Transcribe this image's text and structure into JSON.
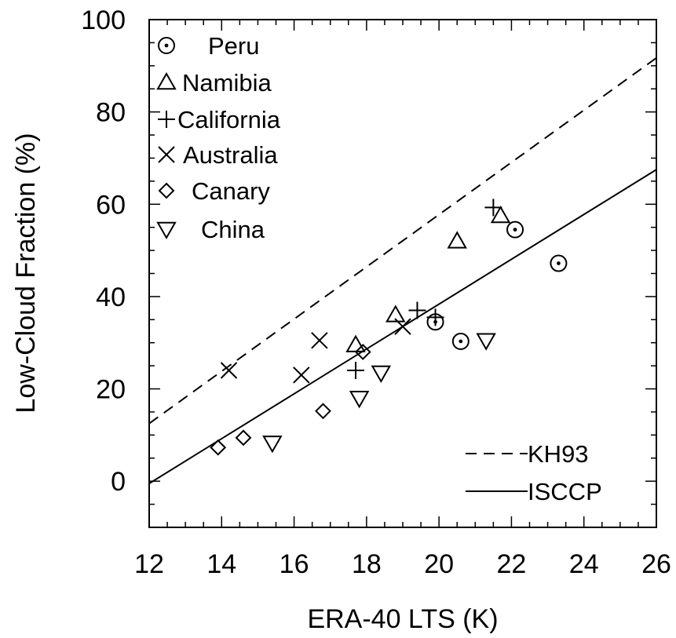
{
  "chart_data": {
    "type": "scatter",
    "title": "",
    "xlabel": "ERA-40 LTS (K)",
    "ylabel": "Low-Cloud Fraction (%)",
    "xlim": [
      12,
      26
    ],
    "ylim": [
      -10,
      100
    ],
    "xticks": [
      12,
      14,
      16,
      18,
      20,
      22,
      24,
      26
    ],
    "yticks": [
      0,
      20,
      40,
      60,
      80,
      100
    ],
    "x_tick_labels": [
      "12",
      "14",
      "16",
      "18",
      "20",
      "22",
      "24",
      "26"
    ],
    "y_tick_labels": [
      "0",
      "20",
      "40",
      "60",
      "80",
      "100"
    ],
    "grid": false,
    "legend_position": "top-left",
    "series": [
      {
        "name": "Peru",
        "marker": "dotted-circle",
        "points": [
          [
            19.9,
            34.5
          ],
          [
            20.6,
            30.3
          ],
          [
            22.1,
            54.5
          ],
          [
            23.3,
            47.2
          ]
        ]
      },
      {
        "name": "Namibia",
        "marker": "triangle-up",
        "points": [
          [
            17.7,
            29.5
          ],
          [
            18.8,
            36.0
          ],
          [
            20.5,
            52.0
          ],
          [
            21.7,
            57.5
          ]
        ]
      },
      {
        "name": "California",
        "marker": "plus",
        "points": [
          [
            17.7,
            24.0
          ],
          [
            19.4,
            37.0
          ],
          [
            19.9,
            35.5
          ],
          [
            21.5,
            59.3
          ]
        ]
      },
      {
        "name": "Australia",
        "marker": "cross",
        "points": [
          [
            14.2,
            24.0
          ],
          [
            16.2,
            23.0
          ],
          [
            16.7,
            30.5
          ],
          [
            19.0,
            33.5
          ]
        ]
      },
      {
        "name": "Canary",
        "marker": "diamond",
        "points": [
          [
            13.9,
            7.3
          ],
          [
            14.6,
            9.4
          ],
          [
            16.8,
            15.2
          ],
          [
            17.9,
            28.0
          ]
        ]
      },
      {
        "name": "China",
        "marker": "triangle-down",
        "points": [
          [
            15.4,
            8.3
          ],
          [
            17.8,
            18.0
          ],
          [
            18.4,
            23.5
          ],
          [
            21.3,
            30.5
          ]
        ]
      }
    ],
    "lines": [
      {
        "name": "KH93",
        "style": "dashed",
        "points": [
          [
            12,
            12.5
          ],
          [
            26,
            91.7
          ]
        ]
      },
      {
        "name": "ISCCP",
        "style": "solid",
        "points": [
          [
            12,
            -0.5
          ],
          [
            26,
            67.5
          ]
        ]
      }
    ]
  }
}
